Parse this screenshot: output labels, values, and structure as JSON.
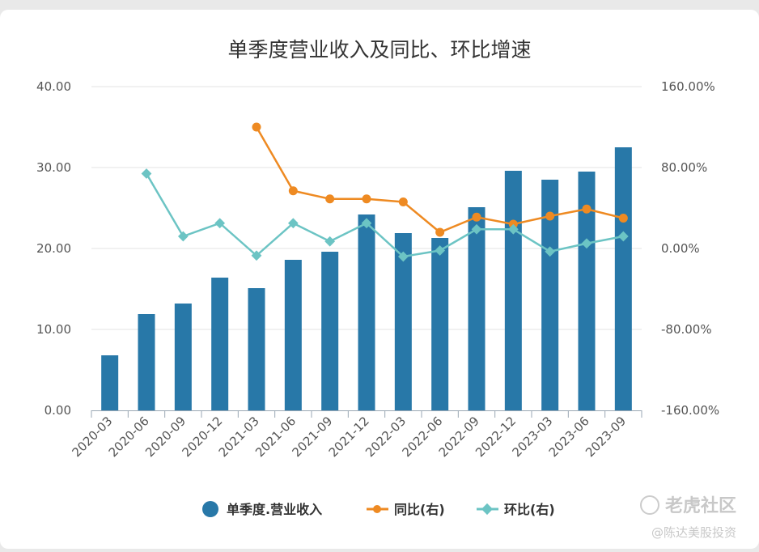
{
  "chart_data": {
    "type": "bar",
    "title": "单季度营业收入及同比、环比增速",
    "categories": [
      "2020-03",
      "2020-06",
      "2020-09",
      "2020-12",
      "2021-03",
      "2021-06",
      "2021-09",
      "2021-12",
      "2022-03",
      "2022-06",
      "2022-09",
      "2022-12",
      "2023-03",
      "2023-06",
      "2023-09"
    ],
    "left_axis": {
      "ylim": [
        0,
        40
      ],
      "ticks": [
        "0.00",
        "10.00",
        "20.00",
        "30.00",
        "40.00"
      ]
    },
    "right_axis": {
      "ylim": [
        -160,
        160
      ],
      "ticks": [
        "-160.00%",
        "-80.00%",
        "0.00%",
        "80.00%",
        "160.00%"
      ]
    },
    "grid": true,
    "legend_position": "bottom",
    "series": [
      {
        "name": "单季度.营业收入",
        "type": "bar",
        "axis": "left",
        "color": "#2878a8",
        "values": [
          6.8,
          11.9,
          13.2,
          16.4,
          15.1,
          18.6,
          19.6,
          24.2,
          21.9,
          21.3,
          25.1,
          29.6,
          28.5,
          29.5,
          32.5
        ]
      },
      {
        "name": "同比(右)",
        "type": "line",
        "axis": "right",
        "color": "#ee8a22",
        "values": [
          null,
          null,
          null,
          null,
          120,
          57,
          49,
          49,
          46,
          16,
          31,
          24,
          32,
          39,
          30
        ]
      },
      {
        "name": "环比(右)",
        "type": "line",
        "axis": "right",
        "color": "#6cc4c4",
        "values": [
          null,
          74,
          12,
          25,
          -7,
          25,
          7,
          25,
          -8,
          -2,
          19,
          19,
          -3,
          5,
          12
        ]
      }
    ]
  },
  "watermark": {
    "brand": "老虎社区",
    "author": "@陈达美股投资"
  }
}
